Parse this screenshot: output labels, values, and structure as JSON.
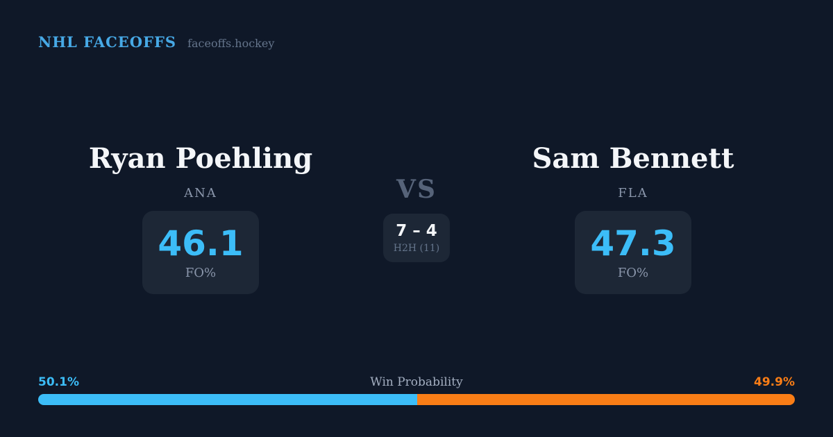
{
  "brand": {
    "title": "NHL FACEOFFS",
    "domain": "faceoffs.hockey"
  },
  "matchup": {
    "vs_label": "VS",
    "player_left": {
      "name": "Ryan Poehling",
      "team": "ANA",
      "stat_value": "46.1",
      "stat_label": "FO%"
    },
    "player_right": {
      "name": "Sam Bennett",
      "team": "FLA",
      "stat_value": "47.3",
      "stat_label": "FO%"
    },
    "h2h": {
      "record": "7 – 4",
      "label": "H2H (11)"
    }
  },
  "win_probability": {
    "title": "Win Probability",
    "left_pct_label": "50.1%",
    "right_pct_label": "49.9%",
    "left_value": 50.1,
    "right_value": 49.9
  },
  "colors": {
    "background": "#0f1828",
    "card_background": "#1d2736",
    "brand_blue": "#47a9e6",
    "accent_blue": "#3cbdf8",
    "accent_orange": "#f97d16",
    "muted_slate": "#8a96ab",
    "dim_slate": "#64748b",
    "vs_slate": "#566379",
    "title_slate": "#a3aec0",
    "white_text": "#f4f6f9"
  }
}
